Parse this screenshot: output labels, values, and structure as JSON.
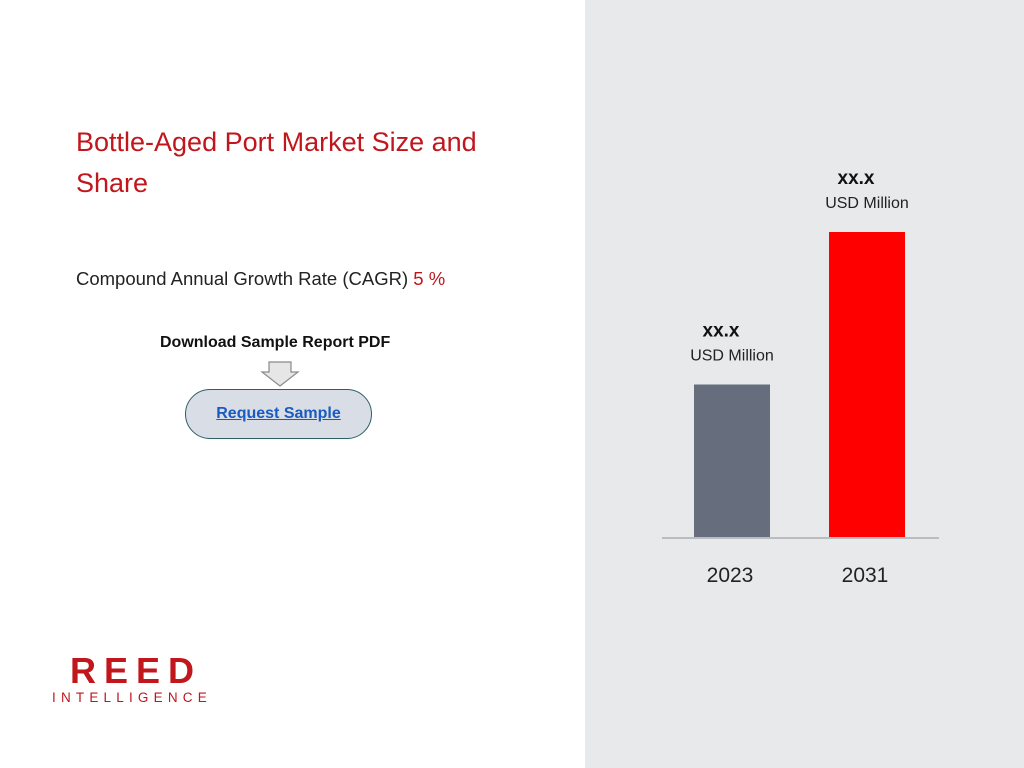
{
  "title": "Bottle-Aged Port Market Size and Share",
  "cagr": {
    "label": "Compound Annual Growth Rate (CAGR)",
    "value": "5 %"
  },
  "download": {
    "label": "Download Sample Report PDF",
    "button_label": "Request Sample"
  },
  "logo": {
    "main": "REED",
    "sub": "INTELLIGENCE"
  },
  "colors": {
    "accent": "#c0161c",
    "bar_2023": "#666e7d",
    "bar_2031": "#ff0000",
    "panel": "#e8e9eb"
  },
  "chart_data": {
    "type": "bar",
    "categories": [
      "2023",
      "2031"
    ],
    "values": [
      1,
      2
    ],
    "value_labels": [
      "xx.x",
      "xx.x"
    ],
    "unit_labels": [
      "USD Million",
      "USD Million"
    ],
    "colors": [
      "#666e7d",
      "#ff0000"
    ]
  }
}
